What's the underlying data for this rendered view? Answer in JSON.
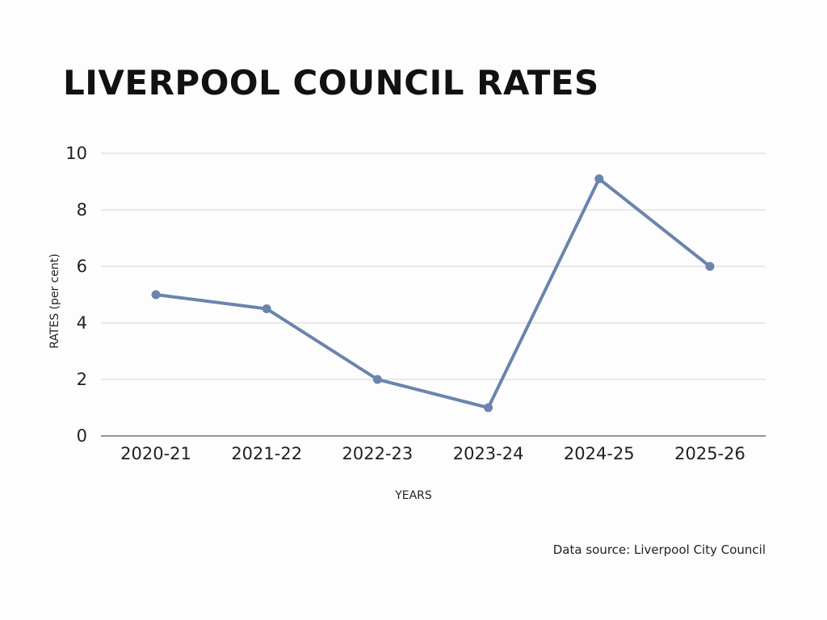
{
  "title": "LIVERPOOL COUNCIL RATES",
  "source": "Data source: Liverpool City Council",
  "colors": {
    "line": "#6b84ae",
    "grid": "#d4d4d4",
    "axis": "#555555"
  },
  "chart_data": {
    "type": "line",
    "title": "LIVERPOOL COUNCIL RATES",
    "xlabel": "YEARS",
    "ylabel": "RATES (per cent)",
    "categories": [
      "2020-21",
      "2021-22",
      "2022-23",
      "2023-24",
      "2024-25",
      "2025-26"
    ],
    "values": [
      5,
      4.5,
      2,
      1,
      9.1,
      6
    ],
    "ylim": [
      0,
      10
    ],
    "yticks": [
      0,
      2,
      4,
      6,
      8,
      10
    ],
    "grid": true,
    "legend": "none"
  }
}
